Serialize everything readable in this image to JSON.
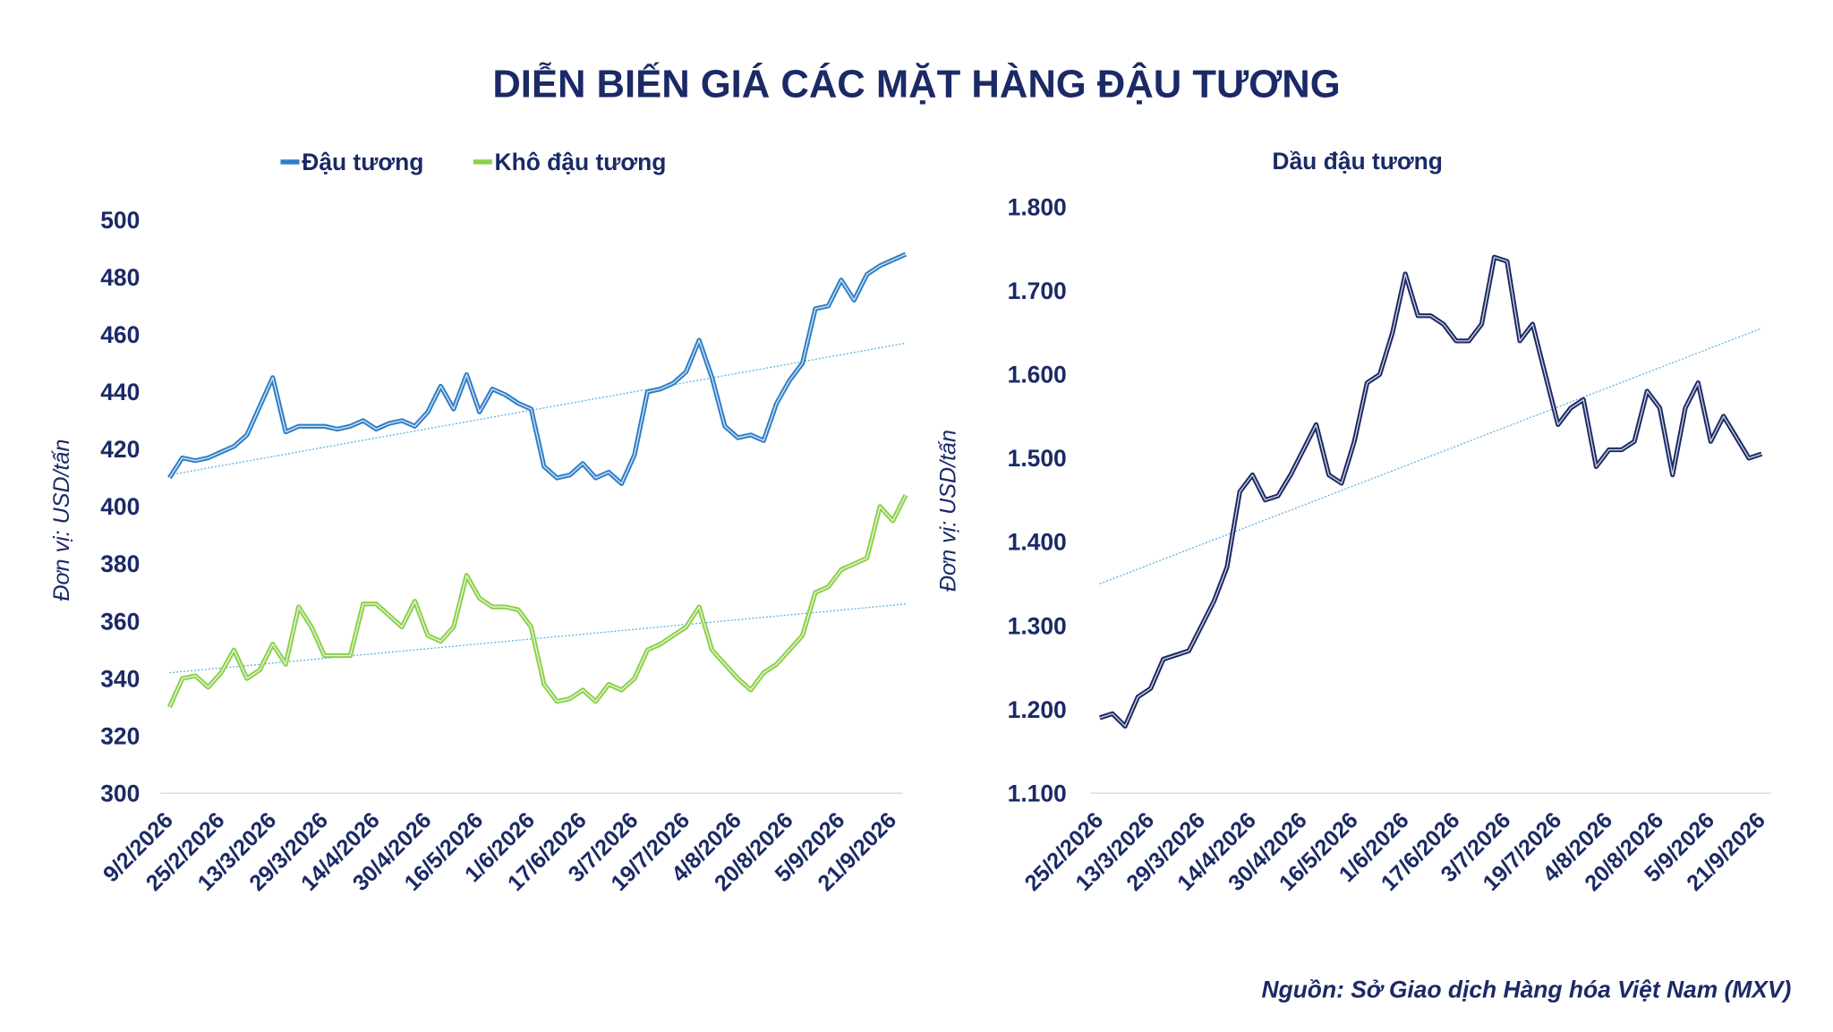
{
  "title": "DIỄN BIẾN GIÁ CÁC MẶT HÀNG ĐẬU TƯƠNG",
  "source": "Nguồn: Sở Giao dịch Hàng hóa Việt Nam (MXV)",
  "chart_data": [
    {
      "type": "line",
      "ylabel": "Đơn vị: USD/tấn",
      "legend": "top",
      "categories": [
        "9/2/2026",
        null,
        null,
        null,
        "25/2/2026",
        null,
        null,
        null,
        "13/3/2026",
        null,
        null,
        null,
        "29/3/2026",
        null,
        null,
        null,
        "14/4/2026",
        null,
        null,
        null,
        "30/4/2026",
        null,
        null,
        null,
        "16/5/2026",
        null,
        null,
        null,
        "1/6/2026",
        null,
        null,
        null,
        "17/6/2026",
        null,
        null,
        null,
        "3/7/2026",
        null,
        null,
        null,
        "19/7/2026",
        null,
        null,
        null,
        "4/8/2026",
        null,
        null,
        null,
        "20/8/2026",
        null,
        null,
        null,
        "5/9/2026",
        null,
        null,
        null,
        "21/9/2026",
        null
      ],
      "ylim": [
        300,
        500
      ],
      "yticks": [
        300,
        320,
        340,
        360,
        380,
        400,
        420,
        440,
        460,
        480,
        500
      ],
      "series": [
        {
          "name": "Đậu tương",
          "color": "#2f7ec6",
          "trendline": [
            411,
            457
          ],
          "values": [
            410,
            417,
            416,
            417,
            419,
            421,
            425,
            435,
            445,
            426,
            428,
            428,
            428,
            427,
            428,
            430,
            427,
            429,
            430,
            428,
            433,
            442,
            434,
            446,
            433,
            441,
            439,
            436,
            434,
            414,
            410,
            411,
            415,
            410,
            412,
            408,
            418,
            440,
            441,
            443,
            447,
            458,
            445,
            428,
            424,
            425,
            423,
            436,
            444,
            450,
            469,
            470,
            479,
            472,
            481,
            484,
            486,
            488
          ]
        },
        {
          "name": "Khô đậu tương",
          "color": "#8cd04c",
          "trendline": [
            342,
            366
          ],
          "values": [
            330,
            340,
            341,
            337,
            342,
            350,
            340,
            343,
            352,
            345,
            365,
            358,
            348,
            348,
            348,
            366,
            366,
            362,
            358,
            367,
            355,
            353,
            358,
            376,
            368,
            365,
            365,
            364,
            358,
            338,
            332,
            333,
            336,
            332,
            338,
            336,
            340,
            350,
            352,
            355,
            358,
            365,
            350,
            345,
            340,
            336,
            342,
            345,
            350,
            355,
            370,
            372,
            378,
            380,
            382,
            400,
            395,
            404
          ]
        }
      ]
    },
    {
      "type": "line",
      "title": "Dầu đậu tương",
      "ylabel": "Đơn vị: USD/tấn",
      "categories": [
        "25/2/2026",
        null,
        null,
        null,
        "13/3/2026",
        null,
        null,
        null,
        "29/3/2026",
        null,
        null,
        null,
        "14/4/2026",
        null,
        null,
        null,
        "30/4/2026",
        null,
        null,
        null,
        "16/5/2026",
        null,
        null,
        null,
        "1/6/2026",
        null,
        null,
        null,
        "17/6/2026",
        null,
        null,
        null,
        "3/7/2026",
        null,
        null,
        null,
        "19/7/2026",
        null,
        null,
        null,
        "4/8/2026",
        null,
        null,
        null,
        "20/8/2026",
        null,
        null,
        null,
        "5/9/2026",
        null,
        null,
        null,
        "21/9/2026"
      ],
      "ylim": [
        1100,
        1800
      ],
      "yticks": [
        {
          "value": 1100,
          "label": "1.100"
        },
        {
          "value": 1200,
          "label": "1.200"
        },
        {
          "value": 1300,
          "label": "1.300"
        },
        {
          "value": 1400,
          "label": "1.400"
        },
        {
          "value": 1500,
          "label": "1.500"
        },
        {
          "value": 1600,
          "label": "1.600"
        },
        {
          "value": 1700,
          "label": "1.700"
        },
        {
          "value": 1800,
          "label": "1.800"
        }
      ],
      "series": [
        {
          "color": "#1b2a66",
          "trendline": [
            1350,
            1655
          ],
          "values": [
            1190,
            1195,
            1180,
            1215,
            1225,
            1260,
            1265,
            1270,
            1300,
            1330,
            1370,
            1460,
            1480,
            1450,
            1455,
            1480,
            1510,
            1540,
            1480,
            1470,
            1520,
            1590,
            1600,
            1650,
            1720,
            1670,
            1670,
            1660,
            1640,
            1640,
            1660,
            1740,
            1735,
            1640,
            1660,
            1600,
            1540,
            1560,
            1570,
            1490,
            1510,
            1510,
            1520,
            1580,
            1560,
            1480,
            1560,
            1590,
            1520,
            1550,
            1525,
            1500,
            1505
          ]
        }
      ]
    }
  ]
}
